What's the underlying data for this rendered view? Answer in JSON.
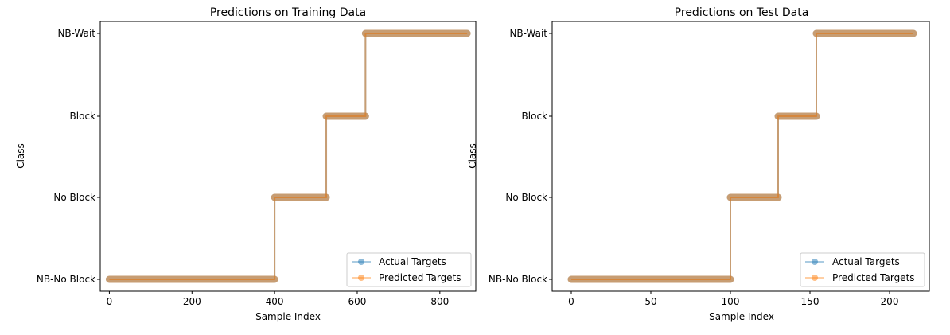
{
  "chart_data": [
    {
      "type": "line",
      "title": "Predictions on Training Data",
      "xlabel": "Sample Index",
      "ylabel": "Class",
      "xlim": [
        -22,
        887
      ],
      "xticks": [
        0,
        200,
        400,
        600,
        800
      ],
      "categories": [
        "NB-No Block",
        "No Block",
        "Block",
        "NB-Wait"
      ],
      "legend_position": "lower right",
      "grid": false,
      "series": [
        {
          "name": "Actual Targets",
          "color": "#1f77b4",
          "segments": [
            {
              "x_start": 0,
              "x_end": 400,
              "class": "NB-No Block"
            },
            {
              "x_start": 400,
              "x_end": 525,
              "class": "No Block"
            },
            {
              "x_start": 525,
              "x_end": 620,
              "class": "Block"
            },
            {
              "x_start": 620,
              "x_end": 866,
              "class": "NB-Wait"
            }
          ]
        },
        {
          "name": "Predicted Targets",
          "color": "#ff7f0e",
          "segments": [
            {
              "x_start": 0,
              "x_end": 400,
              "class": "NB-No Block"
            },
            {
              "x_start": 400,
              "x_end": 525,
              "class": "No Block"
            },
            {
              "x_start": 525,
              "x_end": 620,
              "class": "Block"
            },
            {
              "x_start": 620,
              "x_end": 866,
              "class": "NB-Wait"
            }
          ]
        }
      ]
    },
    {
      "type": "line",
      "title": "Predictions on Test Data",
      "xlabel": "Sample Index",
      "ylabel": "Class",
      "xlim": [
        -12,
        225
      ],
      "xticks": [
        0,
        50,
        100,
        150,
        200
      ],
      "categories": [
        "NB-No Block",
        "No Block",
        "Block",
        "NB-Wait"
      ],
      "legend_position": "lower right",
      "grid": false,
      "series": [
        {
          "name": "Actual Targets",
          "color": "#1f77b4",
          "segments": [
            {
              "x_start": 0,
              "x_end": 100,
              "class": "NB-No Block"
            },
            {
              "x_start": 100,
              "x_end": 130,
              "class": "No Block"
            },
            {
              "x_start": 130,
              "x_end": 154,
              "class": "Block"
            },
            {
              "x_start": 154,
              "x_end": 215,
              "class": "NB-Wait"
            }
          ]
        },
        {
          "name": "Predicted Targets",
          "color": "#ff7f0e",
          "segments": [
            {
              "x_start": 0,
              "x_end": 100,
              "class": "NB-No Block"
            },
            {
              "x_start": 100,
              "x_end": 130,
              "class": "No Block"
            },
            {
              "x_start": 130,
              "x_end": 154,
              "class": "Block"
            },
            {
              "x_start": 154,
              "x_end": 215,
              "class": "NB-Wait"
            }
          ]
        }
      ]
    }
  ]
}
